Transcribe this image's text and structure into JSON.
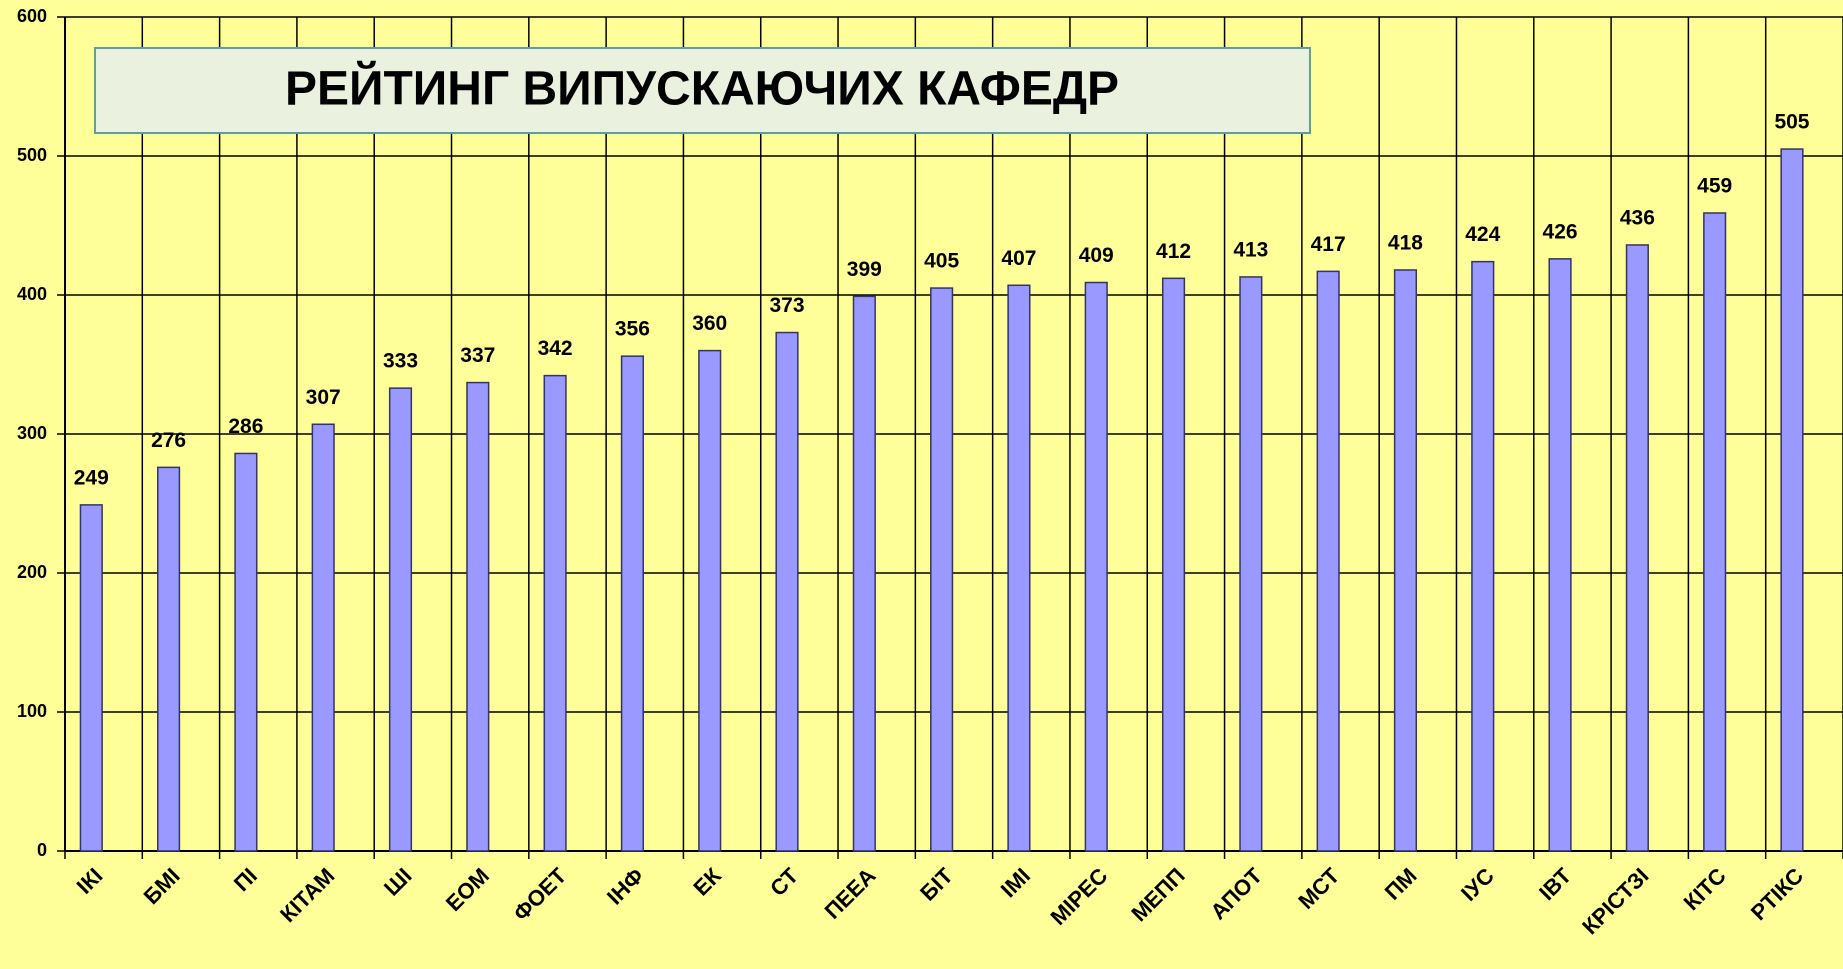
{
  "chart_data": {
    "type": "bar",
    "title": "РЕЙТИНГ ВИПУСКАЮЧИХ КАФЕДР",
    "categories": [
      "ІКІ",
      "БМІ",
      "ПІ",
      "КІТАМ",
      "ШІ",
      "ЕОМ",
      "ФОЕТ",
      "ІНФ",
      "ЕК",
      "СТ",
      "ПЕЕА",
      "БІТ",
      "ІМІ",
      "МІРЕС",
      "МЕПП",
      "АПОТ",
      "МСТ",
      "ПМ",
      "ІУС",
      "ІВТ",
      "КРІСТЗІ",
      "КІТС",
      "РТІКС"
    ],
    "values": [
      249,
      276,
      286,
      307,
      333,
      337,
      342,
      356,
      360,
      373,
      399,
      405,
      407,
      409,
      412,
      413,
      417,
      418,
      424,
      426,
      436,
      459,
      505
    ],
    "color": "#9999ff",
    "ylim": [
      0,
      600
    ],
    "yticks": [
      0,
      100,
      200,
      300,
      400,
      500,
      600
    ],
    "grid": true
  }
}
